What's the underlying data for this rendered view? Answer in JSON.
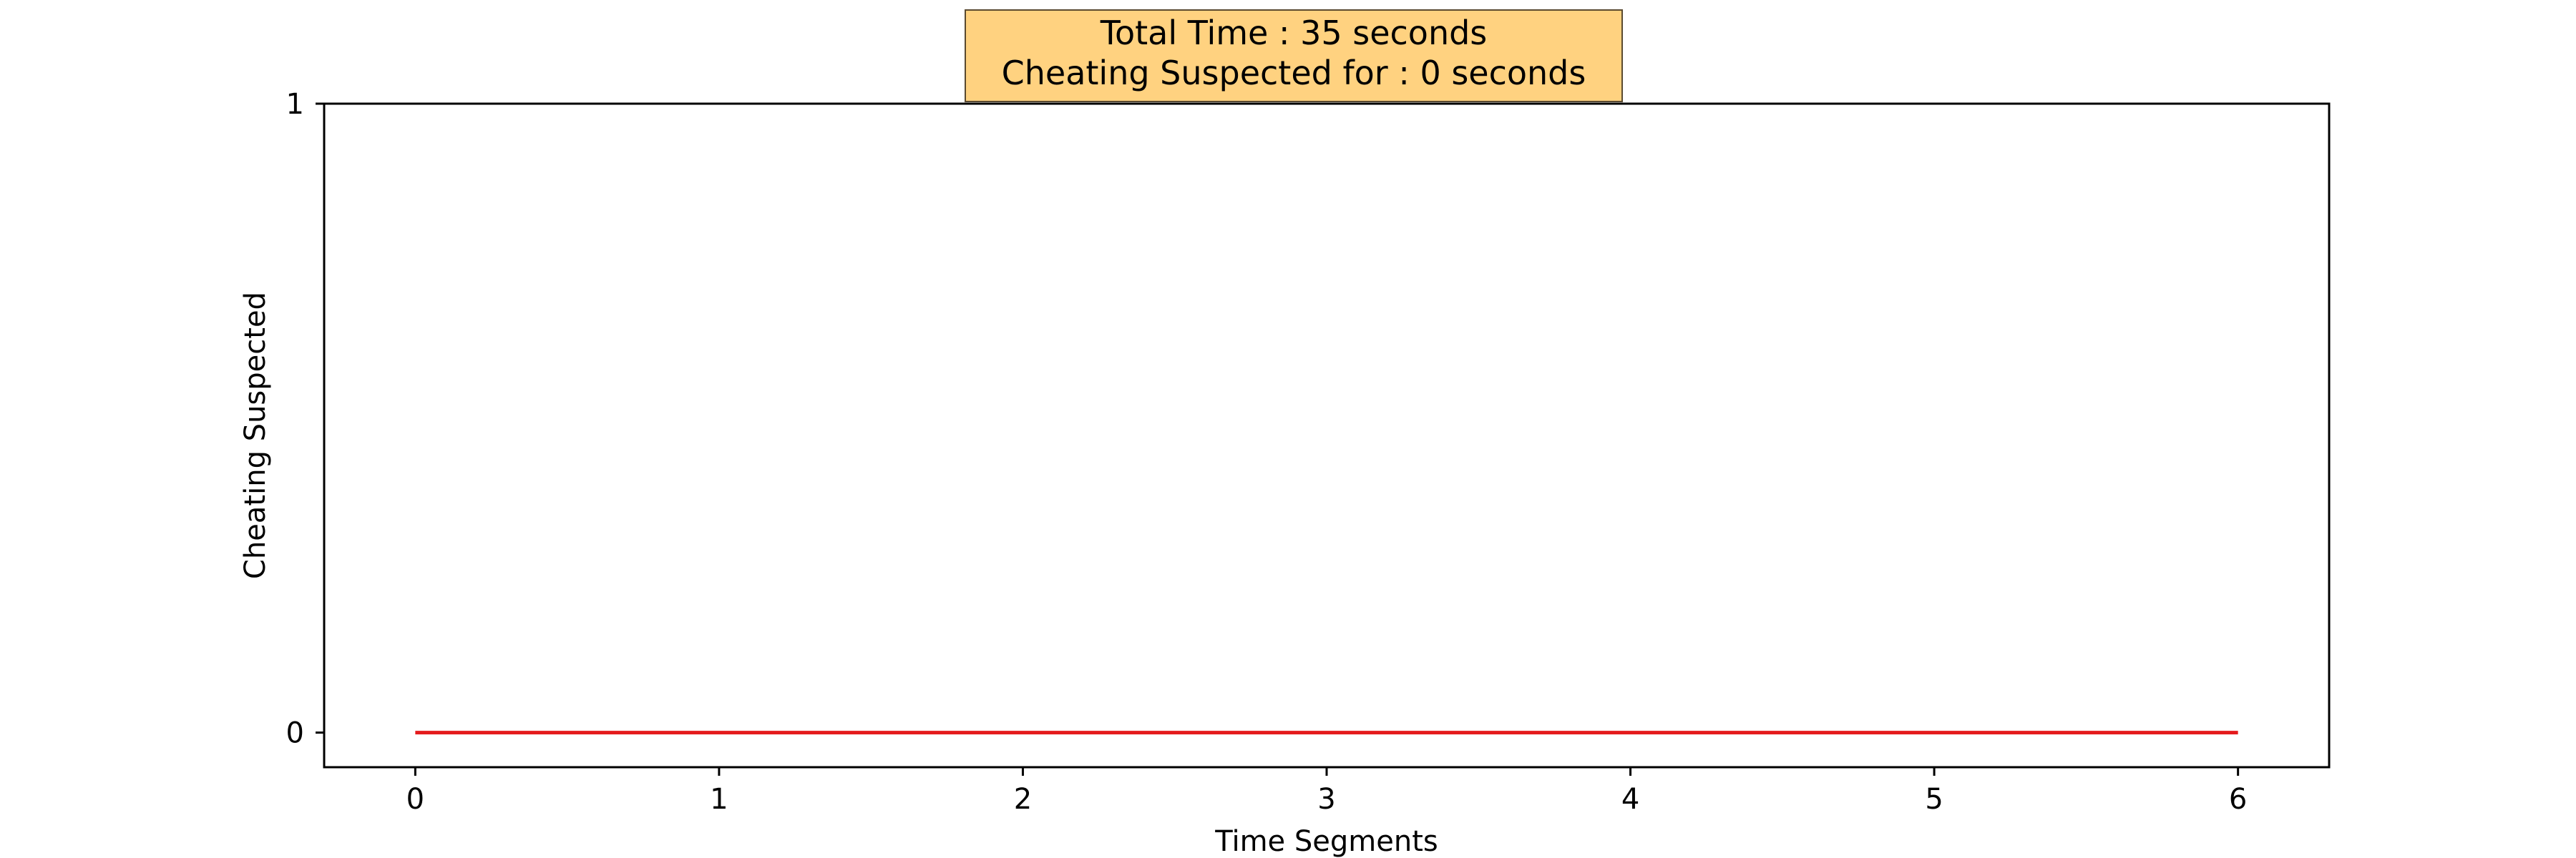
{
  "chart_data": {
    "type": "line",
    "title_lines": [
      "Total Time : 35 seconds",
      "Cheating Suspected for : 0 seconds"
    ],
    "title_box_color": "#ffd280",
    "xlabel": "Time Segments",
    "ylabel": "Cheating Suspected",
    "x": [
      0,
      1,
      2,
      3,
      4,
      5,
      6
    ],
    "series": [
      {
        "values": [
          0,
          0,
          0,
          0,
          0,
          0,
          0
        ],
        "color": "#e41a1c"
      }
    ],
    "xlim": [
      -0.3,
      6.3
    ],
    "ylim": [
      -0.055,
      1
    ],
    "xticks": [
      0,
      1,
      2,
      3,
      4,
      5,
      6
    ],
    "yticks": [
      0,
      1
    ],
    "grid": false,
    "legend": "none"
  }
}
